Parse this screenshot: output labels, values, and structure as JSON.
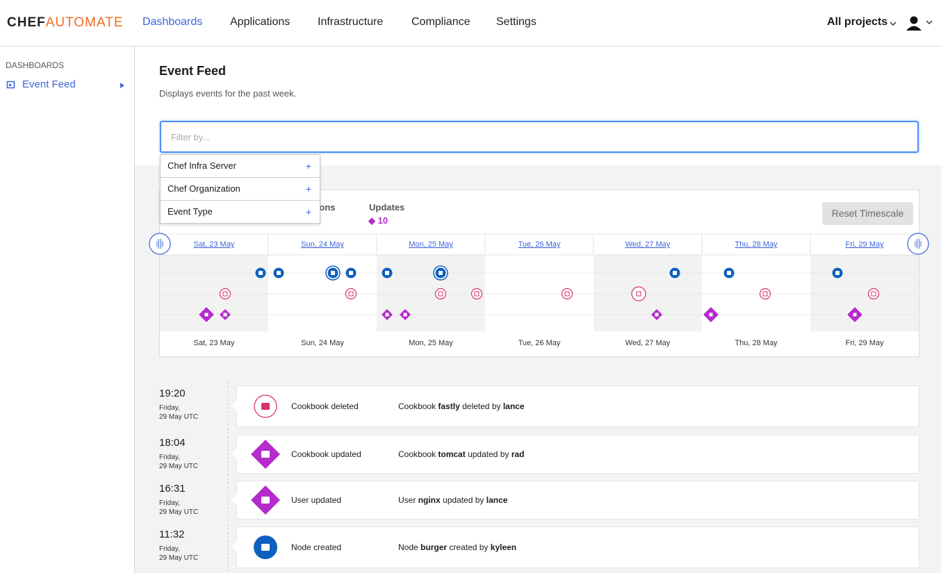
{
  "header": {
    "brand_a": "CHEF",
    "brand_b": "AUTOMATE",
    "nav": [
      "Dashboards",
      "Applications",
      "Infrastructure",
      "Compliance",
      "Settings"
    ],
    "projects": "All projects"
  },
  "sidebar": {
    "heading": "DASHBOARDS",
    "item": "Event Feed"
  },
  "main": {
    "title": "Event Feed",
    "subtitle": "Displays events for the past week.",
    "filter_placeholder": "Filter by...",
    "filter_options": [
      "Chef Infra Server",
      "Chef Organization",
      "Event Type"
    ],
    "deletions_label": "Deletions",
    "updates_label": "Updates",
    "updates_count": "10",
    "reset": "Reset Timescale",
    "days": [
      "Sat, 23 May",
      "Sun, 24 May",
      "Mon, 25 May",
      "Tue, 26 May",
      "Wed, 27 May",
      "Thu, 28 May",
      "Fri, 29 May"
    ],
    "events": [
      {
        "time": "19:20",
        "day": "Friday,",
        "date": "29 May UTC",
        "event": "Cookbook deleted",
        "desc": [
          "Cookbook",
          "fastly",
          "deleted by",
          "lance"
        ]
      },
      {
        "time": "18:04",
        "day": "Friday,",
        "date": "29 May UTC",
        "event": "Cookbook updated",
        "desc": [
          "Cookbook",
          "tomcat",
          "updated by",
          "rad"
        ]
      },
      {
        "time": "16:31",
        "day": "Friday,",
        "date": "29 May UTC",
        "event": "User updated",
        "desc": [
          "User",
          "nginx",
          "updated by",
          "lance"
        ]
      },
      {
        "time": "11:32",
        "day": "Friday,",
        "date": "29 May UTC",
        "event": "Node created",
        "desc": [
          "Node",
          "burger",
          "created by",
          "kyleen"
        ]
      }
    ]
  }
}
